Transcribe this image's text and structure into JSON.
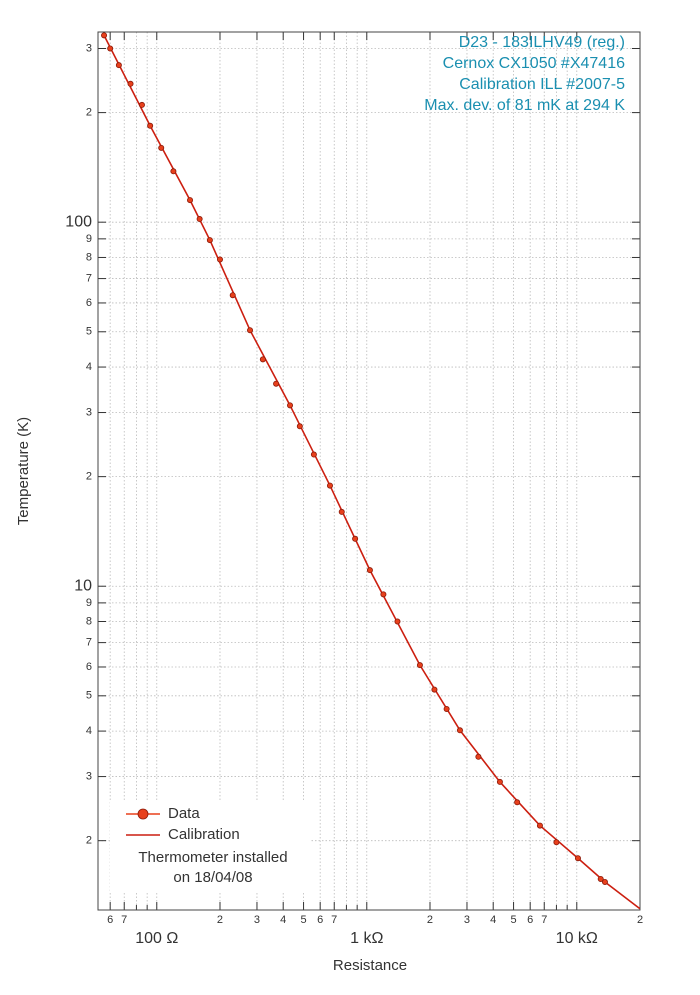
{
  "chart_data": {
    "type": "line",
    "xscale": "log",
    "yscale": "log",
    "x_label": "Resistance",
    "y_label": "Temperature (K)",
    "annotation": [
      "D23 - 183ILHV49 (reg.)",
      "Cernox CX1050 #X47416",
      "Calibration ILL #2007-5",
      "Max. dev. of 81 mK at 294 K"
    ],
    "annotation_color": "#1a8fb0",
    "legend_position": "lower left",
    "legend_note": [
      "Thermometer installed",
      "on 18/04/08"
    ],
    "grid": true,
    "xlim": [
      52.5,
      20000
    ],
    "ylim": [
      1.29,
      333
    ],
    "xticks": [
      {
        "value": 60,
        "label": "6"
      },
      {
        "value": 70,
        "label": "7"
      },
      {
        "value": 100,
        "label": "100  Ω"
      },
      {
        "value": 200,
        "label": "2"
      },
      {
        "value": 300,
        "label": "3"
      },
      {
        "value": 400,
        "label": "4"
      },
      {
        "value": 500,
        "label": "5"
      },
      {
        "value": 600,
        "label": "6"
      },
      {
        "value": 700,
        "label": "7"
      },
      {
        "value": 1000,
        "label": "1 kΩ"
      },
      {
        "value": 2000,
        "label": "2"
      },
      {
        "value": 3000,
        "label": "3"
      },
      {
        "value": 4000,
        "label": "4"
      },
      {
        "value": 5000,
        "label": "5"
      },
      {
        "value": 6000,
        "label": "6"
      },
      {
        "value": 7000,
        "label": "7"
      },
      {
        "value": 10000,
        "label": "10 kΩ"
      },
      {
        "value": 20000,
        "label": "2"
      }
    ],
    "x_minor_grid": [
      80,
      90,
      800,
      900,
      8000,
      9000
    ],
    "yticks": [
      {
        "value": 300,
        "label": "3"
      },
      {
        "value": 200,
        "label": "2"
      },
      100,
      {
        "value": 90,
        "label": "9"
      },
      {
        "value": 80,
        "label": "8"
      },
      {
        "value": 70,
        "label": "7"
      },
      {
        "value": 60,
        "label": "6"
      },
      {
        "value": 50,
        "label": "5"
      },
      {
        "value": 40,
        "label": "4"
      },
      {
        "value": 30,
        "label": "3"
      },
      {
        "value": 20,
        "label": "2"
      },
      10,
      9,
      8,
      7,
      6,
      5,
      4,
      3,
      2
    ],
    "series": [
      {
        "name": "Data",
        "mode": "markers",
        "color": "#e8401c",
        "x": [
          56.1,
          60,
          66,
          75,
          85,
          93,
          105,
          120,
          144,
          160,
          179,
          200,
          230,
          278,
          320,
          370,
          431,
          480,
          560,
          668,
          760,
          880,
          1035,
          1200,
          1400,
          1791,
          2100,
          2400,
          2778,
          3400,
          4305,
          5200,
          6677,
          8000,
          10130,
          13000,
          13620
        ],
        "values": [
          326,
          300,
          270,
          240,
          210,
          184,
          160,
          138,
          115,
          102,
          89.3,
          79,
          63,
          50.5,
          42,
          36,
          31.4,
          27.5,
          23,
          18.9,
          16,
          13.5,
          11.07,
          9.5,
          8,
          6.07,
          5.2,
          4.6,
          4.02,
          3.4,
          2.9,
          2.55,
          2.2,
          1.98,
          1.79,
          1.57,
          1.54
        ]
      },
      {
        "name": "Calibration",
        "mode": "line",
        "color": "#cc1f10",
        "x": [
          56.1,
          93,
          144,
          179,
          278,
          431,
          668,
          1035,
          1791,
          2778,
          4305,
          6677,
          10130,
          13620,
          20000
        ],
        "values": [
          326,
          184,
          115,
          89.3,
          50.5,
          31.4,
          18.9,
          11.07,
          6.07,
          4.02,
          2.9,
          2.2,
          1.79,
          1.54,
          1.3
        ]
      }
    ]
  }
}
